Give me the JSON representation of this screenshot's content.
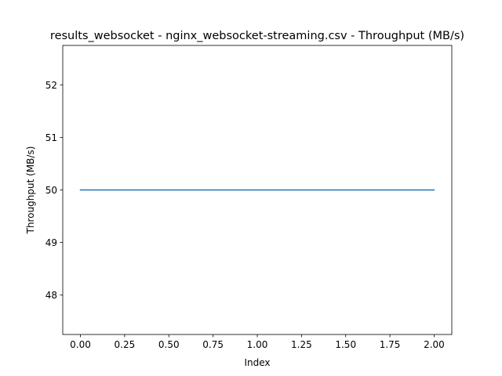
{
  "chart_data": {
    "type": "line",
    "title": "results_websocket - nginx_websocket-streaming.csv - Throughput (MB/s)",
    "xlabel": "Index",
    "ylabel": "Throughput (MB/s)",
    "xlim": [
      -0.1,
      2.1
    ],
    "ylim": [
      47.25,
      52.75
    ],
    "xticks": [
      0.0,
      0.25,
      0.5,
      0.75,
      1.0,
      1.25,
      1.5,
      1.75,
      2.0
    ],
    "xtick_labels": [
      "0.00",
      "0.25",
      "0.50",
      "0.75",
      "1.00",
      "1.25",
      "1.50",
      "1.75",
      "2.00"
    ],
    "yticks": [
      48,
      49,
      50,
      51,
      52
    ],
    "ytick_labels": [
      "48",
      "49",
      "50",
      "51",
      "52"
    ],
    "grid": false,
    "legend": "none",
    "series": [
      {
        "x": [
          0,
          1,
          2
        ],
        "y": [
          50,
          50,
          50
        ],
        "color": "#1f77b4"
      }
    ]
  }
}
